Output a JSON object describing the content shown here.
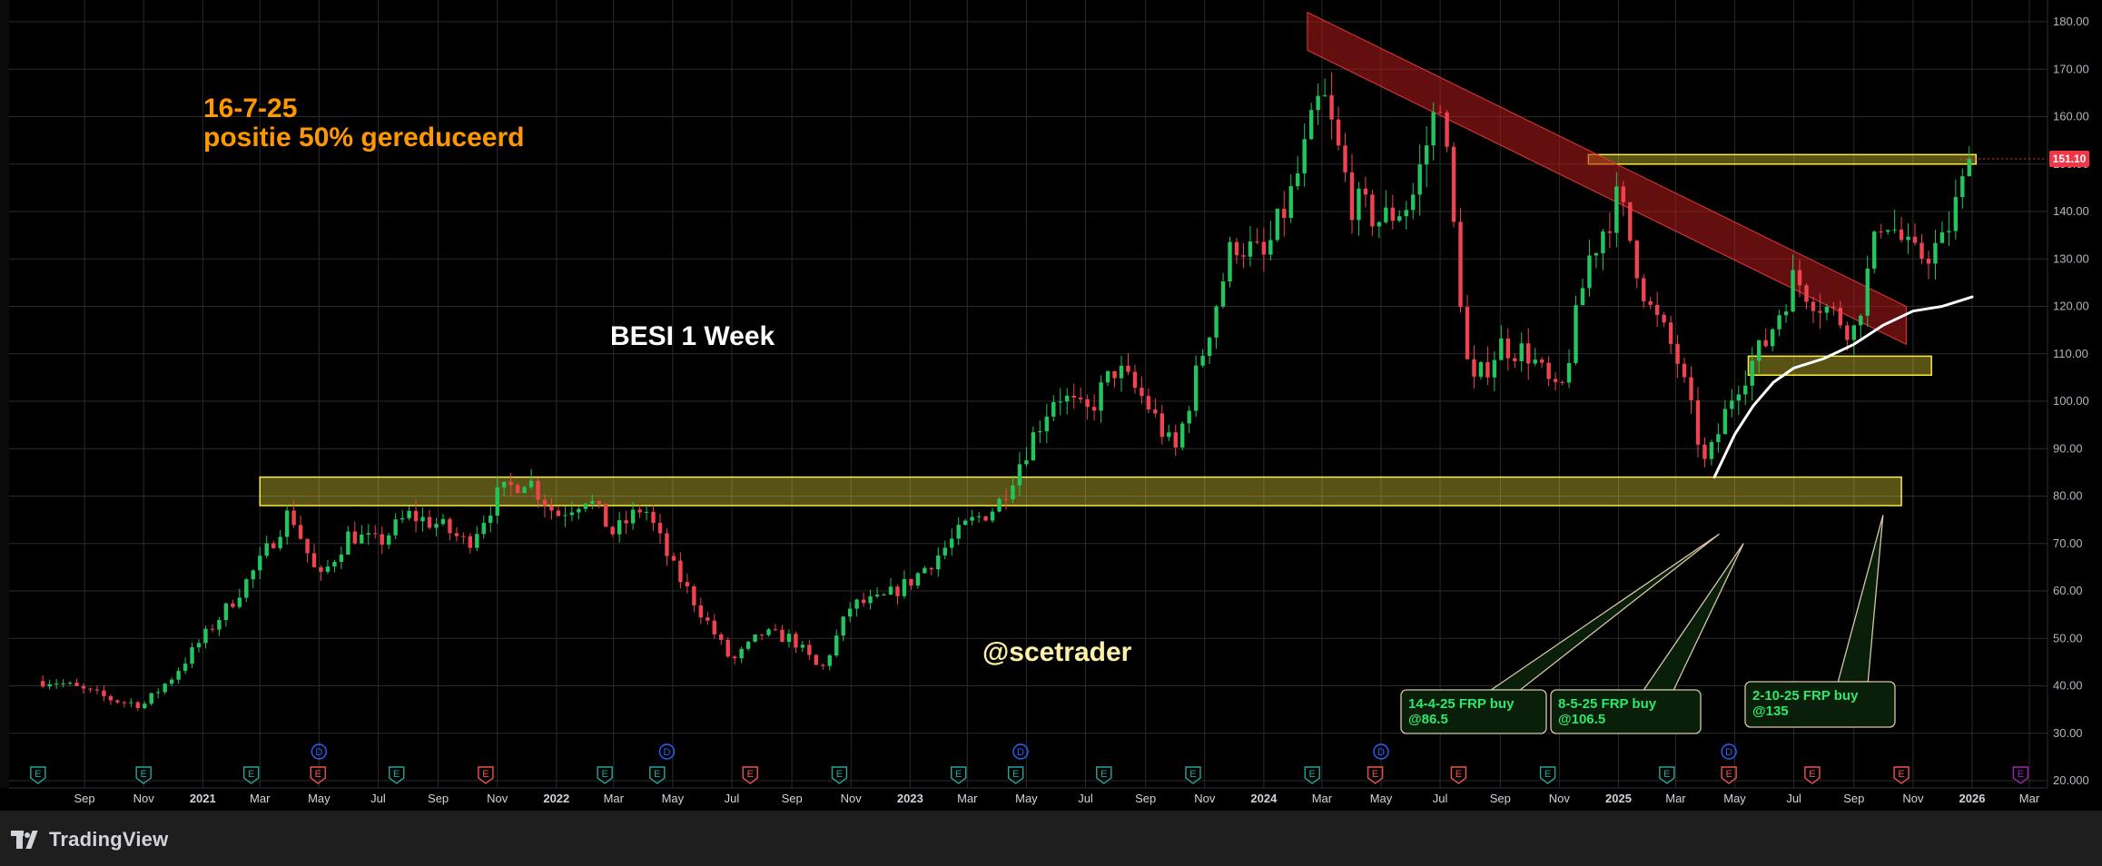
{
  "chart_data": {
    "type": "candlestick",
    "symbol_title": "BESI 1 Week",
    "note_date": "16-7-25",
    "note_text": "positie 50% gereduceerd",
    "watermark": "@scetrader",
    "last_price_label": "151.10",
    "last_price": 151.1,
    "ylim": [
      20,
      182
    ],
    "y_ticks": [
      "20.000",
      "30.00",
      "40.00",
      "50.00",
      "60.00",
      "70.00",
      "80.00",
      "90.00",
      "100.00",
      "110.00",
      "120.00",
      "130.00",
      "140.00",
      "150.00",
      "160.00",
      "170.00",
      "180.00"
    ],
    "x_ticks": [
      "Sep",
      "Nov",
      "2021",
      "Mar",
      "May",
      "Jul",
      "Sep",
      "Nov",
      "2022",
      "Mar",
      "May",
      "Jul",
      "Sep",
      "Nov",
      "2023",
      "Mar",
      "May",
      "Jul",
      "Sep",
      "Nov",
      "2024",
      "Mar",
      "May",
      "Jul",
      "Sep",
      "Nov",
      "2025",
      "Mar",
      "May",
      "Jul",
      "Sep",
      "Nov",
      "2026",
      "Mar"
    ],
    "price_path": [
      [
        "2020-08-01",
        41
      ],
      [
        "2020-10-01",
        37
      ],
      [
        "2020-11-01",
        36
      ],
      [
        "2020-12-01",
        42
      ],
      [
        "2021-02-01",
        58
      ],
      [
        "2021-03-01",
        66
      ],
      [
        "2021-04-01",
        77
      ],
      [
        "2021-05-01",
        62
      ],
      [
        "2021-06-01",
        72
      ],
      [
        "2021-07-01",
        70
      ],
      [
        "2021-08-01",
        76
      ],
      [
        "2021-09-01",
        74
      ],
      [
        "2021-10-01",
        70
      ],
      [
        "2021-11-01",
        80
      ],
      [
        "2021-12-01",
        84
      ],
      [
        "2022-01-01",
        76
      ],
      [
        "2022-02-01",
        80
      ],
      [
        "2022-03-01",
        72
      ],
      [
        "2022-04-01",
        78
      ],
      [
        "2022-05-01",
        65
      ],
      [
        "2022-06-01",
        55
      ],
      [
        "2022-07-01",
        45
      ],
      [
        "2022-08-01",
        51
      ],
      [
        "2022-09-01",
        50
      ],
      [
        "2022-10-01",
        43
      ],
      [
        "2022-11-01",
        57
      ],
      [
        "2022-12-01",
        58
      ],
      [
        "2023-01-01",
        62
      ],
      [
        "2023-02-01",
        68
      ],
      [
        "2023-03-01",
        74
      ],
      [
        "2023-04-01",
        78
      ],
      [
        "2023-05-01",
        90
      ],
      [
        "2023-06-01",
        102
      ],
      [
        "2023-07-01",
        97
      ],
      [
        "2023-08-01",
        107
      ],
      [
        "2023-09-01",
        100
      ],
      [
        "2023-10-01",
        89
      ],
      [
        "2023-11-01",
        112
      ],
      [
        "2023-12-01",
        134
      ],
      [
        "2024-01-01",
        130
      ],
      [
        "2024-02-01",
        145
      ],
      [
        "2024-03-01",
        165
      ],
      [
        "2024-04-01",
        142
      ],
      [
        "2024-05-01",
        138
      ],
      [
        "2024-06-01",
        142
      ],
      [
        "2024-07-01",
        165
      ],
      [
        "2024-08-01",
        102
      ],
      [
        "2024-09-01",
        112
      ],
      [
        "2024-10-01",
        110
      ],
      [
        "2024-11-01",
        100
      ],
      [
        "2024-12-01",
        130
      ],
      [
        "2025-01-01",
        143
      ],
      [
        "2025-02-01",
        120
      ],
      [
        "2025-03-01",
        110
      ],
      [
        "2025-04-01",
        86
      ],
      [
        "2025-05-01",
        103
      ],
      [
        "2025-06-01",
        112
      ],
      [
        "2025-07-01",
        126
      ],
      [
        "2025-08-01",
        120
      ],
      [
        "2025-09-01",
        115
      ],
      [
        "2025-10-01",
        140
      ],
      [
        "2025-11-01",
        130
      ],
      [
        "2025-12-01",
        133
      ],
      [
        "2026-01-01",
        151.1
      ]
    ],
    "moving_average": [
      [
        "2025-04-10",
        84
      ],
      [
        "2025-05-01",
        93
      ],
      [
        "2025-05-20",
        99
      ],
      [
        "2025-06-10",
        104
      ],
      [
        "2025-07-01",
        107
      ],
      [
        "2025-08-01",
        109
      ],
      [
        "2025-09-01",
        112
      ],
      [
        "2025-10-01",
        116
      ],
      [
        "2025-11-01",
        119
      ],
      [
        "2025-12-01",
        120
      ],
      [
        "2026-01-01",
        122
      ]
    ],
    "zones": [
      {
        "name": "support-zone-main",
        "from": "2021-03-01",
        "to": "2025-10-20",
        "low": 78,
        "high": 84,
        "color": "#ffeb3b"
      },
      {
        "name": "resistance-zone",
        "from": "2024-12-01",
        "to": "2026-01-05",
        "low": 150,
        "high": 152,
        "color": "#ffeb3b"
      },
      {
        "name": "support-zone-small",
        "from": "2025-05-15",
        "to": "2025-11-20",
        "low": 105.5,
        "high": 109.5,
        "color": "#ffeb3b"
      }
    ],
    "channel": {
      "from": [
        "2024-02-15",
        182
      ],
      "to": [
        "2025-10-25",
        120
      ],
      "height": 8,
      "color": "#b71c1c"
    },
    "callouts": [
      {
        "line1": "14-4-25 FRP buy",
        "line2": "@86.5",
        "tip": [
          "2025-04-15",
          72
        ]
      },
      {
        "line1": "8-5-25 FRP buy",
        "line2": "@106.5",
        "tip": [
          "2025-05-10",
          70
        ]
      },
      {
        "line1": "2-10-25 FRP buy",
        "line2": "@135",
        "tip": [
          "2025-10-01",
          76
        ]
      }
    ],
    "markers": [
      {
        "letter": "E",
        "date": "2020-07-15",
        "color": "#26a69a"
      },
      {
        "letter": "E",
        "date": "2020-11-01",
        "color": "#26a69a"
      },
      {
        "letter": "E",
        "date": "2021-02-20",
        "color": "#26a69a"
      },
      {
        "letter": "E",
        "date": "2021-04-30",
        "color": "#ef5350"
      },
      {
        "letter": "E",
        "date": "2021-07-20",
        "color": "#26a69a"
      },
      {
        "letter": "E",
        "date": "2021-10-20",
        "color": "#ef5350"
      },
      {
        "letter": "E",
        "date": "2022-02-20",
        "color": "#26a69a"
      },
      {
        "letter": "E",
        "date": "2022-04-15",
        "color": "#26a69a"
      },
      {
        "letter": "E",
        "date": "2022-07-20",
        "color": "#ef5350"
      },
      {
        "letter": "E",
        "date": "2022-10-20",
        "color": "#26a69a"
      },
      {
        "letter": "E",
        "date": "2023-02-20",
        "color": "#26a69a"
      },
      {
        "letter": "E",
        "date": "2023-04-20",
        "color": "#26a69a"
      },
      {
        "letter": "E",
        "date": "2023-07-20",
        "color": "#26a69a"
      },
      {
        "letter": "E",
        "date": "2023-10-20",
        "color": "#26a69a"
      },
      {
        "letter": "E",
        "date": "2024-02-20",
        "color": "#26a69a"
      },
      {
        "letter": "E",
        "date": "2024-04-25",
        "color": "#ef5350"
      },
      {
        "letter": "E",
        "date": "2024-07-20",
        "color": "#ef5350"
      },
      {
        "letter": "E",
        "date": "2024-10-20",
        "color": "#26a69a"
      },
      {
        "letter": "E",
        "date": "2025-02-20",
        "color": "#26a69a"
      },
      {
        "letter": "E",
        "date": "2025-04-25",
        "color": "#ef5350"
      },
      {
        "letter": "E",
        "date": "2025-07-20",
        "color": "#ef5350"
      },
      {
        "letter": "E",
        "date": "2025-10-20",
        "color": "#ef5350"
      },
      {
        "letter": "E",
        "date": "2026-02-20",
        "color": "#9c27b0"
      }
    ],
    "dividend_markers": [
      {
        "letter": "D",
        "date": "2021-05-01"
      },
      {
        "letter": "D",
        "date": "2022-04-25"
      },
      {
        "letter": "D",
        "date": "2023-04-25"
      },
      {
        "letter": "D",
        "date": "2024-05-01"
      },
      {
        "letter": "D",
        "date": "2025-04-25"
      }
    ],
    "grid": true,
    "colors": {
      "up": "#22c55e",
      "down": "#ef4350",
      "ma": "#ffffff",
      "note": "#ff9800",
      "title": "#ffffff",
      "watermark": "#fff2a8",
      "callout_text": "#2ee86a",
      "price_label_bg": "#f23645"
    }
  },
  "branding": {
    "logo_text": "TradingView"
  }
}
